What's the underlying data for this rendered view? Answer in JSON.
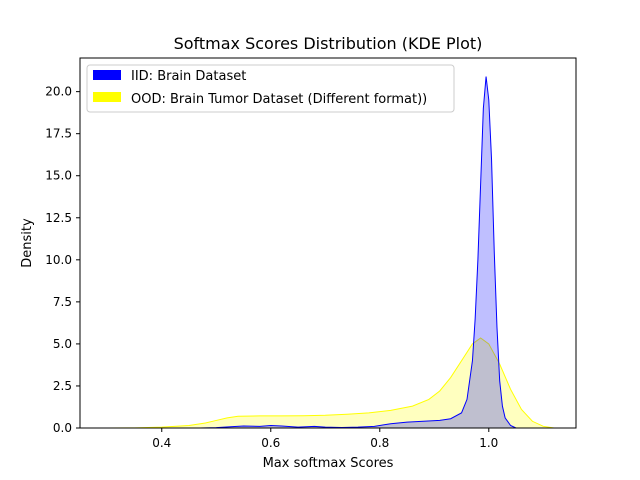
{
  "chart_data": {
    "type": "area",
    "title": "Softmax Scores Distribution (KDE Plot)",
    "xlabel": "Max softmax Scores",
    "ylabel": "Density",
    "xlim": [
      0.25,
      1.16
    ],
    "ylim": [
      0,
      22
    ],
    "x_ticks": [
      0.4,
      0.6,
      0.8,
      1.0
    ],
    "x_tick_labels": [
      "0.4",
      "0.6",
      "0.8",
      "1.0"
    ],
    "y_ticks": [
      0.0,
      2.5,
      5.0,
      7.5,
      10.0,
      12.5,
      15.0,
      17.5,
      20.0
    ],
    "y_tick_labels": [
      "0.0",
      "2.5",
      "5.0",
      "7.5",
      "10.0",
      "12.5",
      "15.0",
      "17.5",
      "20.0"
    ],
    "grid": false,
    "legend_position": "top-left",
    "series": [
      {
        "name": "IID: Brain Dataset",
        "legend_color": "#0000ff",
        "line_color": "#0000ff",
        "fill_color": "#0000ff",
        "fill_opacity": 0.25,
        "points": [
          [
            0.47,
            0.0
          ],
          [
            0.5,
            0.02
          ],
          [
            0.53,
            0.08
          ],
          [
            0.55,
            0.12
          ],
          [
            0.58,
            0.1
          ],
          [
            0.6,
            0.15
          ],
          [
            0.62,
            0.12
          ],
          [
            0.65,
            0.05
          ],
          [
            0.68,
            0.1
          ],
          [
            0.7,
            0.05
          ],
          [
            0.73,
            0.03
          ],
          [
            0.76,
            0.05
          ],
          [
            0.79,
            0.1
          ],
          [
            0.82,
            0.25
          ],
          [
            0.85,
            0.35
          ],
          [
            0.88,
            0.4
          ],
          [
            0.91,
            0.45
          ],
          [
            0.93,
            0.55
          ],
          [
            0.95,
            0.9
          ],
          [
            0.96,
            1.7
          ],
          [
            0.97,
            4.0
          ],
          [
            0.975,
            6.5
          ],
          [
            0.98,
            10.0
          ],
          [
            0.985,
            14.5
          ],
          [
            0.99,
            19.0
          ],
          [
            0.995,
            20.9
          ],
          [
            1.0,
            19.5
          ],
          [
            1.005,
            16.0
          ],
          [
            1.01,
            10.5
          ],
          [
            1.015,
            6.0
          ],
          [
            1.02,
            2.8
          ],
          [
            1.025,
            1.3
          ],
          [
            1.03,
            0.6
          ],
          [
            1.04,
            0.15
          ],
          [
            1.05,
            0.0
          ]
        ]
      },
      {
        "name": "OOD: Brain Tumor Dataset (Different format))",
        "legend_color": "#ffff00",
        "line_color": "#ffff00",
        "fill_color": "#ffff00",
        "fill_opacity": 0.25,
        "points": [
          [
            0.3,
            0.0
          ],
          [
            0.35,
            0.01
          ],
          [
            0.4,
            0.05
          ],
          [
            0.45,
            0.15
          ],
          [
            0.48,
            0.3
          ],
          [
            0.5,
            0.45
          ],
          [
            0.52,
            0.6
          ],
          [
            0.54,
            0.7
          ],
          [
            0.58,
            0.72
          ],
          [
            0.62,
            0.72
          ],
          [
            0.66,
            0.73
          ],
          [
            0.7,
            0.76
          ],
          [
            0.74,
            0.82
          ],
          [
            0.78,
            0.9
          ],
          [
            0.82,
            1.05
          ],
          [
            0.86,
            1.3
          ],
          [
            0.89,
            1.7
          ],
          [
            0.91,
            2.2
          ],
          [
            0.93,
            3.0
          ],
          [
            0.95,
            4.0
          ],
          [
            0.97,
            5.0
          ],
          [
            0.985,
            5.35
          ],
          [
            1.0,
            5.0
          ],
          [
            1.02,
            3.8
          ],
          [
            1.04,
            2.3
          ],
          [
            1.06,
            1.1
          ],
          [
            1.08,
            0.4
          ],
          [
            1.1,
            0.1
          ],
          [
            1.12,
            0.0
          ]
        ]
      }
    ]
  }
}
